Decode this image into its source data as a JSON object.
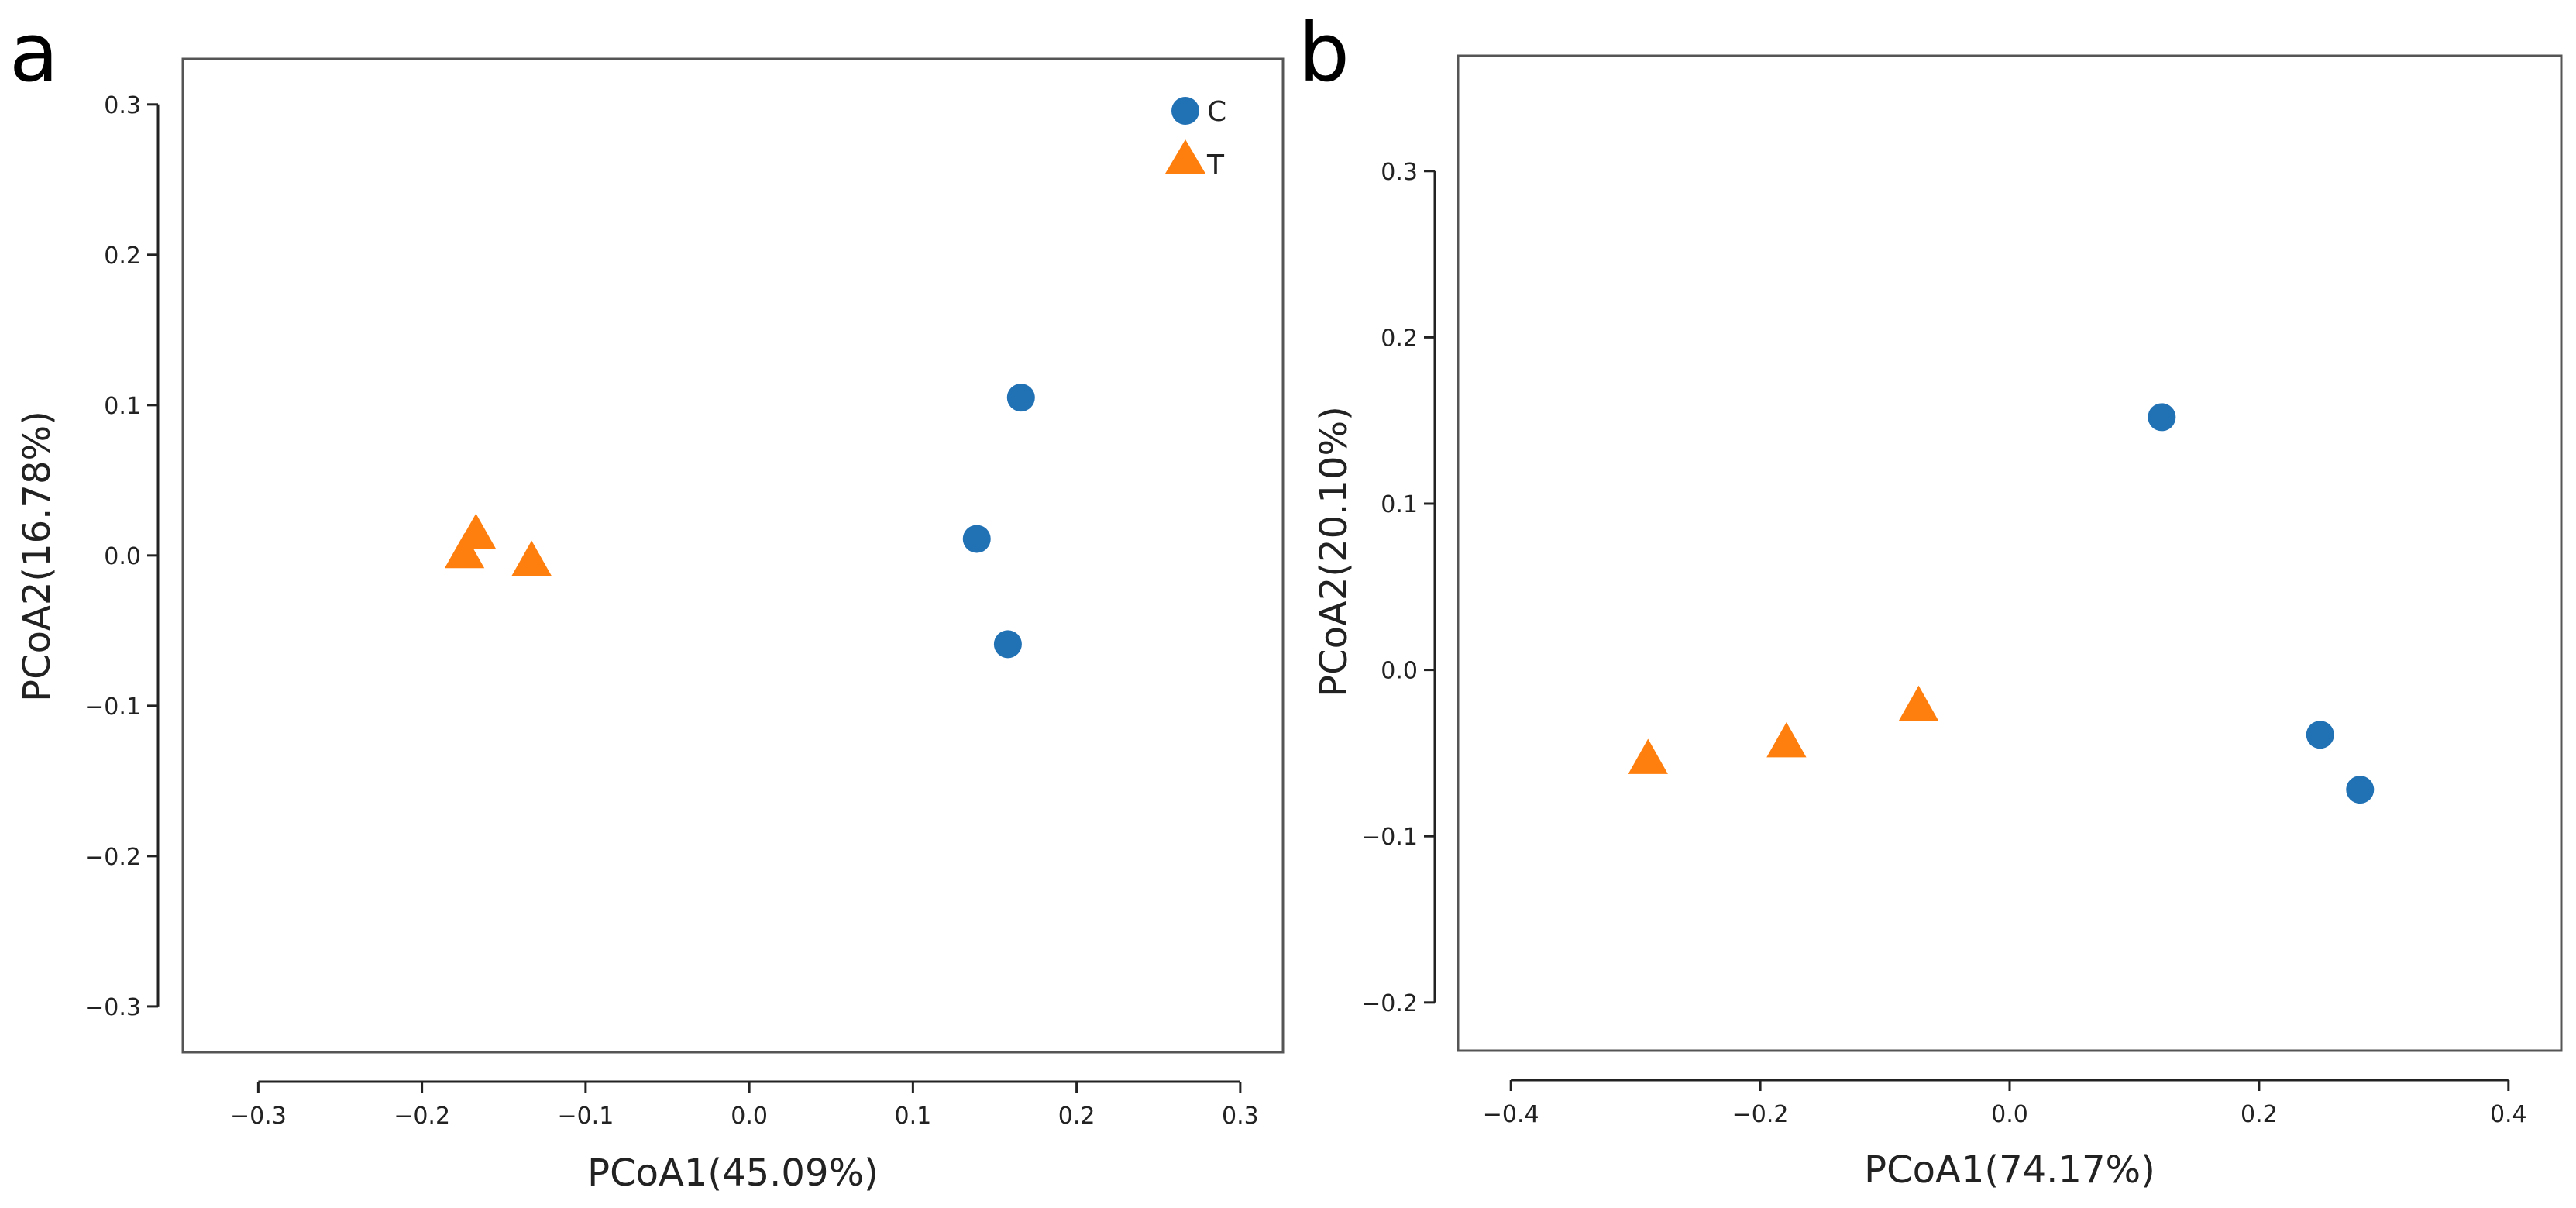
{
  "figure": {
    "colors": {
      "C": "#2171b5",
      "T": "#ff7f0e",
      "axis": "#222222",
      "frame": "#555555"
    },
    "legend": [
      {
        "label": "C",
        "marker": "circle"
      },
      {
        "label": "T",
        "marker": "triangle"
      }
    ]
  },
  "chart_data": [
    {
      "type": "scatter",
      "panel_label": "a",
      "xlabel": "PCoA1(45.09%)",
      "ylabel": "PCoA2(16.78%)",
      "xlim": [
        -0.33,
        0.31
      ],
      "ylim": [
        -0.315,
        0.32
      ],
      "xticks": [
        -0.3,
        -0.2,
        -0.1,
        0.0,
        0.1,
        0.2,
        0.3
      ],
      "xtick_labels": [
        "−0.3",
        "−0.2",
        "−0.1",
        "0.0",
        "0.1",
        "0.2",
        "0.3"
      ],
      "yticks": [
        -0.3,
        -0.2,
        -0.1,
        0.0,
        0.1,
        0.2,
        0.3
      ],
      "ytick_labels": [
        "−0.3",
        "−0.2",
        "−0.1",
        "0.0",
        "0.1",
        "0.2",
        "0.3"
      ],
      "legend": "top-right",
      "series": [
        {
          "name": "C",
          "marker": "circle",
          "x": [
            0.166,
            0.139,
            0.158
          ],
          "y": [
            0.105,
            0.011,
            -0.059
          ]
        },
        {
          "name": "T",
          "marker": "triangle",
          "x": [
            -0.167,
            -0.174,
            -0.133
          ],
          "y": [
            0.014,
            0.001,
            -0.004
          ]
        }
      ]
    },
    {
      "type": "scatter",
      "panel_label": "b",
      "xlabel": "PCoA1(74.17%)",
      "ylabel": "PCoA2(20.10%)",
      "xlim": [
        -0.42,
        0.42
      ],
      "ylim": [
        -0.215,
        0.36
      ],
      "xticks": [
        -0.4,
        -0.2,
        0.0,
        0.2,
        0.4
      ],
      "xtick_labels": [
        "−0.4",
        "−0.2",
        "0.0",
        "0.2",
        "0.4"
      ],
      "yticks": [
        -0.2,
        -0.1,
        0.0,
        0.1,
        0.2,
        0.3
      ],
      "ytick_labels": [
        "−0.2",
        "−0.1",
        "0.0",
        "0.1",
        "0.2",
        "0.3"
      ],
      "legend": "none",
      "series": [
        {
          "name": "C",
          "marker": "circle",
          "x": [
            0.122,
            0.249,
            0.281
          ],
          "y": [
            0.152,
            -0.039,
            -0.072
          ]
        },
        {
          "name": "T",
          "marker": "triangle",
          "x": [
            -0.29,
            -0.179,
            -0.073
          ],
          "y": [
            -0.054,
            -0.044,
            -0.022
          ]
        }
      ]
    }
  ]
}
